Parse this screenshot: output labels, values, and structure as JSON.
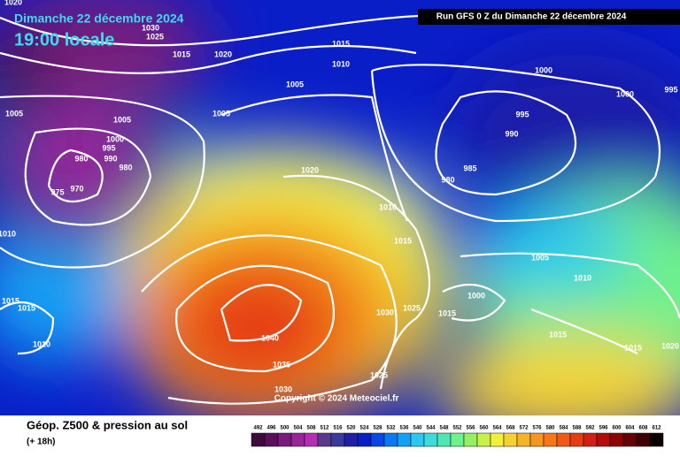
{
  "header": {
    "title": "Dimanche 22 décembre 2024",
    "time": "19:00 locale",
    "run": "Run GFS 0 Z du Dimanche 22 décembre 2024"
  },
  "copyright": "Copyright © 2024 Meteociel.fr",
  "isobar_labels": [
    "1020",
    "1030",
    "1025",
    "1015",
    "1020",
    "1015",
    "1010",
    "1000",
    "1000",
    "995",
    "1005",
    "1005",
    "1005",
    "1005",
    "995",
    "990",
    "1000",
    "995",
    "990",
    "980",
    "980",
    "985",
    "980",
    "970",
    "975",
    "1020",
    "1010",
    "1010",
    "1015",
    "1005",
    "1010",
    "1015",
    "1015",
    "1000",
    "1030",
    "1025",
    "1015",
    "1040",
    "1015",
    "1015",
    "1020",
    "1010",
    "1035",
    "1025",
    "1030"
  ],
  "legend": {
    "title": "Géop. Z500 & pression au sol",
    "subtitle": "(+ 18h)",
    "scale": [
      492,
      496,
      500,
      504,
      508,
      512,
      516,
      520,
      524,
      528,
      532,
      536,
      540,
      544,
      548,
      552,
      556,
      560,
      564,
      568,
      572,
      576,
      580,
      584,
      588,
      592,
      596,
      600,
      604,
      608,
      612
    ],
    "colors": [
      "#3c0a3c",
      "#5a0f5a",
      "#7a1a7a",
      "#9a249a",
      "#b42db4",
      "#5a3a8a",
      "#3a3a9a",
      "#1e1ea8",
      "#0a1ec8",
      "#0a46e6",
      "#0a78f0",
      "#14a0f5",
      "#28c8f0",
      "#3cdcdc",
      "#50e6b4",
      "#6ef08c",
      "#96f064",
      "#c8f046",
      "#f0f03c",
      "#f5d232",
      "#f5b428",
      "#f5961e",
      "#f57814",
      "#f05a14",
      "#e63c14",
      "#d21e14",
      "#b40a0a",
      "#8c0505",
      "#640505",
      "#3c0303",
      "#0a0000"
    ]
  }
}
